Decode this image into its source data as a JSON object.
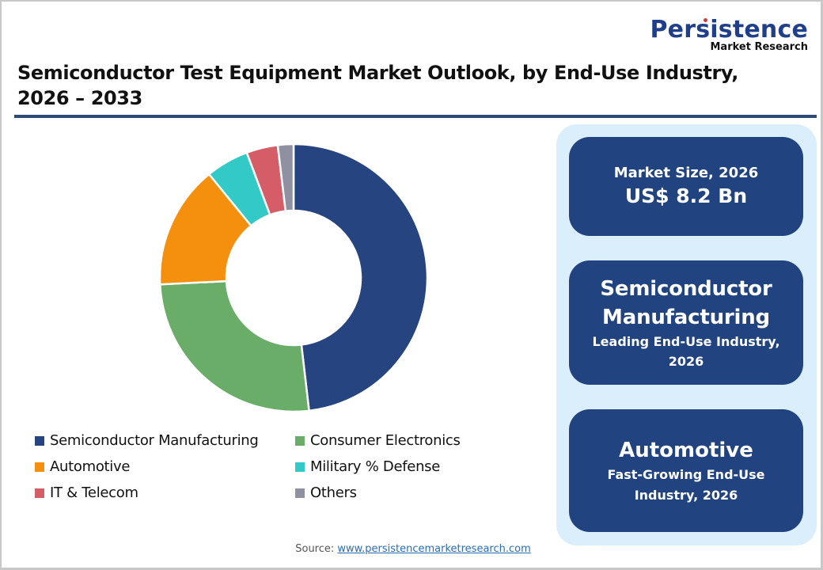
{
  "logo": {
    "main": "Persistence",
    "sub": "Market Research"
  },
  "title": "Semiconductor Test Equipment Market Outlook, by End-Use Industry, 2026 – 2033",
  "colors": {
    "semiconductor_manufacturing": "#26447f",
    "consumer_electronics": "#6aad69",
    "automotive": "#f5900f",
    "military_defense": "#33c9c6",
    "it_telecom": "#d45d68",
    "others": "#9090a3",
    "panel_bg": "#daeefc",
    "box_bg": "#21437f",
    "divider": "#2c4a73"
  },
  "legend": [
    {
      "label": "Semiconductor Manufacturing",
      "color": "#26447f"
    },
    {
      "label": "Consumer Electronics",
      "color": "#6aad69"
    },
    {
      "label": "Automotive",
      "color": "#f5900f"
    },
    {
      "label": "Military % Defense",
      "color": "#33c9c6"
    },
    {
      "label": "IT & Telecom",
      "color": "#d45d68"
    },
    {
      "label": "Others",
      "color": "#9090a3"
    }
  ],
  "side_panel": {
    "market_size": {
      "label": "Market Size, 2026",
      "value": "US$ 8.2 Bn"
    },
    "leading": {
      "line1": "Semiconductor",
      "line2": "Manufacturing",
      "caption1": "Leading End-Use Industry,",
      "caption2": "2026"
    },
    "fastest": {
      "title": "Automotive",
      "caption1": "Fast-Growing End-Use",
      "caption2": "Industry, 2026"
    }
  },
  "source": {
    "label": "Source:",
    "link": "www.persistencemarketresearch.com"
  },
  "chart_data": {
    "type": "pie",
    "subtype": "donut",
    "title": "Semiconductor Test Equipment Market Outlook, by End-Use Industry, 2026 – 2033",
    "categories": [
      "Semiconductor Manufacturing",
      "Consumer Electronics",
      "Automotive",
      "Military % Defense",
      "IT & Telecom",
      "Others"
    ],
    "values": [
      48.2,
      26.1,
      14.9,
      5.2,
      3.8,
      1.9
    ],
    "unit": "% share (estimated from slice angles)",
    "colors": [
      "#26447f",
      "#6aad69",
      "#f5900f",
      "#33c9c6",
      "#d45d68",
      "#9090a3"
    ],
    "start_angle": "12 o'clock, clockwise",
    "legend_position": "bottom",
    "data_labels": false
  }
}
